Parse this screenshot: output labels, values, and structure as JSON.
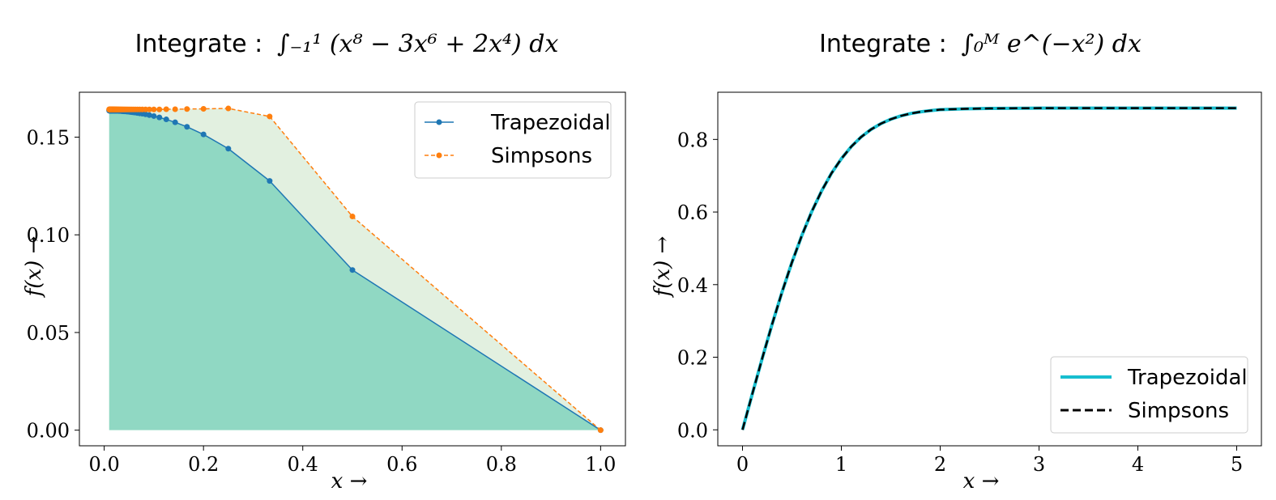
{
  "figure": {
    "charts": [
      {
        "title_prefix": "Integrate :",
        "title_formula": "∫₋₁¹ (x⁸ − 3x⁶ + 2x⁴) dx",
        "xlabel": "x →",
        "ylabel": "f(x) →"
      },
      {
        "title_prefix": "Integrate :",
        "title_formula": "∫₀ᴹ e^(−x²) dx",
        "xlabel": "x →",
        "ylabel": "f(x) →"
      }
    ]
  },
  "colors": {
    "trapezoidal_left": "#1f77b4",
    "simpsons_left": "#ff7f0e",
    "fill_trapezoidal": "#3ebfa5",
    "fill_simpsons": "#d8ebd6",
    "trapezoidal_right": "#17becf",
    "simpsons_right": "#000000"
  },
  "chart_data": [
    {
      "type": "line",
      "title": "Integrate : ∫₋₁¹ (x⁸ − 3x⁶ + 2x⁴) dx",
      "xlabel": "x →",
      "ylabel": "f(x) →",
      "xlim": [
        -0.05,
        1.05
      ],
      "ylim": [
        -0.008,
        0.173
      ],
      "xticks": [
        0.0,
        0.2,
        0.4,
        0.6,
        0.8,
        1.0
      ],
      "xtick_labels": [
        "0.0",
        "0.2",
        "0.4",
        "0.6",
        "0.8",
        "1.0"
      ],
      "yticks": [
        0.0,
        0.05,
        0.1,
        0.15
      ],
      "ytick_labels": [
        "0.00",
        "0.05",
        "0.10",
        "0.15"
      ],
      "grid": false,
      "legend": "top-right",
      "series": [
        {
          "name": "Trapezoidal",
          "style": "solid-marker",
          "x": [
            1.0,
            0.5,
            0.3333,
            0.25,
            0.2,
            0.1667,
            0.1429,
            0.125,
            0.1111,
            0.1,
            0.0909,
            0.0833,
            0.0769,
            0.0714,
            0.0667,
            0.0625,
            0.0588,
            0.0556,
            0.0526,
            0.05,
            0.0476,
            0.0455,
            0.0435,
            0.0417,
            0.04,
            0.0385,
            0.037,
            0.0357,
            0.0345,
            0.0333,
            0.0323,
            0.0313,
            0.0303,
            0.0294,
            0.0286,
            0.0278,
            0.027,
            0.0263,
            0.0256,
            0.025,
            0.0244,
            0.0238,
            0.0233,
            0.0227,
            0.0222,
            0.0217,
            0.0213,
            0.0208,
            0.0204,
            0.02,
            0.0196,
            0.0192,
            0.0189,
            0.0185,
            0.0182,
            0.0179,
            0.0175,
            0.0172,
            0.0169,
            0.0167,
            0.0164,
            0.0161,
            0.0159,
            0.0156,
            0.0154,
            0.0152,
            0.0149,
            0.0147,
            0.0145,
            0.0143,
            0.0141,
            0.0139,
            0.0137,
            0.0135,
            0.0133,
            0.0132,
            0.013,
            0.0128,
            0.0127,
            0.0125,
            0.0123,
            0.0122,
            0.012,
            0.0119,
            0.0118,
            0.0116,
            0.0115,
            0.0114,
            0.0112,
            0.0111,
            0.011,
            0.0109,
            0.0108,
            0.0106,
            0.0105,
            0.0104,
            0.0103,
            0.0102,
            0.0101,
            0.01
          ],
          "y": [
            0.0,
            0.082,
            0.1276,
            0.1441,
            0.1514,
            0.1553,
            0.1576,
            0.1591,
            0.1601,
            0.1608,
            0.1613,
            0.1617,
            0.162,
            0.1622,
            0.1624,
            0.1626,
            0.1627,
            0.1628,
            0.1629,
            0.163,
            0.1631,
            0.1631,
            0.1632,
            0.1632,
            0.1632,
            0.1633,
            0.1633,
            0.1633,
            0.1634,
            0.1634,
            0.1634,
            0.1634,
            0.1634,
            0.1634,
            0.1635,
            0.1635,
            0.1635,
            0.1635,
            0.1635,
            0.1635,
            0.1635,
            0.1635,
            0.1635,
            0.1635,
            0.1635,
            0.1635,
            0.1635,
            0.1635,
            0.1636,
            0.1636,
            0.1636,
            0.1636,
            0.1636,
            0.1636,
            0.1636,
            0.1636,
            0.1636,
            0.1636,
            0.1636,
            0.1636,
            0.1636,
            0.1636,
            0.1636,
            0.1636,
            0.1636,
            0.1636,
            0.1636,
            0.1636,
            0.1636,
            0.1636,
            0.1636,
            0.1636,
            0.1636,
            0.1636,
            0.1636,
            0.1636,
            0.1636,
            0.1636,
            0.1636,
            0.1636,
            0.1636,
            0.1636,
            0.1636,
            0.1636,
            0.1636,
            0.1636,
            0.1636,
            0.1636,
            0.1636,
            0.1636,
            0.1636,
            0.1636,
            0.1636,
            0.1636,
            0.1636,
            0.1636,
            0.1636,
            0.1636,
            0.1636,
            0.1636
          ]
        },
        {
          "name": "Simpsons",
          "style": "dashed-marker",
          "x": [
            1.0,
            0.5,
            0.3333,
            0.25,
            0.2,
            0.1667,
            0.1429,
            0.125,
            0.1111,
            0.1,
            0.0909,
            0.0833,
            0.0769,
            0.0714,
            0.0667,
            0.0625,
            0.0588,
            0.0556,
            0.0526,
            0.05,
            0.0476,
            0.0455,
            0.0435,
            0.0417,
            0.04,
            0.0385,
            0.037,
            0.0357,
            0.0345,
            0.0333,
            0.0323,
            0.0313,
            0.0303,
            0.0294,
            0.0286,
            0.0278,
            0.027,
            0.0263,
            0.0256,
            0.025,
            0.0244,
            0.0238,
            0.0233,
            0.0227,
            0.0222,
            0.0217,
            0.0213,
            0.0208,
            0.0204,
            0.02,
            0.0196,
            0.0192,
            0.0189,
            0.0185,
            0.0182,
            0.0179,
            0.0175,
            0.0172,
            0.0169,
            0.0167,
            0.0164,
            0.0161,
            0.0159,
            0.0156,
            0.0154,
            0.0152,
            0.0149,
            0.0147,
            0.0145,
            0.0143,
            0.0141,
            0.0139,
            0.0137,
            0.0135,
            0.0133,
            0.0132,
            0.013,
            0.0128,
            0.0127,
            0.0125,
            0.0123,
            0.0122,
            0.012,
            0.0119,
            0.0118,
            0.0116,
            0.0115,
            0.0114,
            0.0112,
            0.0111,
            0.011,
            0.0109,
            0.0108,
            0.0106,
            0.0105,
            0.0104,
            0.0103,
            0.0102,
            0.0101,
            0.01
          ],
          "y": [
            0.0,
            0.1094,
            0.1606,
            0.1647,
            0.1645,
            0.1644,
            0.1643,
            0.1643,
            0.1642,
            0.1642,
            0.1642,
            0.1642,
            0.1642,
            0.1642,
            0.1642,
            0.1642,
            0.1642,
            0.1642,
            0.1642,
            0.1642,
            0.1642,
            0.1642,
            0.1642,
            0.1642,
            0.1642,
            0.1642,
            0.1642,
            0.1642,
            0.1642,
            0.1642,
            0.1642,
            0.1642,
            0.1642,
            0.1642,
            0.1642,
            0.1642,
            0.1642,
            0.1642,
            0.1642,
            0.1642,
            0.1642,
            0.1642,
            0.1642,
            0.1642,
            0.1642,
            0.1642,
            0.1642,
            0.1642,
            0.1642,
            0.1642,
            0.1642,
            0.1642,
            0.1642,
            0.1642,
            0.1642,
            0.1642,
            0.1642,
            0.1642,
            0.1642,
            0.1642,
            0.1642,
            0.1642,
            0.1642,
            0.1642,
            0.1642,
            0.1642,
            0.1642,
            0.1642,
            0.1642,
            0.1642,
            0.1642,
            0.1642,
            0.1642,
            0.1642,
            0.1642,
            0.1642,
            0.1642,
            0.1642,
            0.1642,
            0.1642,
            0.1642,
            0.1642,
            0.1642,
            0.1642,
            0.1642,
            0.1642,
            0.1642,
            0.1642,
            0.1642,
            0.1642,
            0.1642,
            0.1642,
            0.1642,
            0.1642,
            0.1642,
            0.1642,
            0.1642,
            0.1642,
            0.1642,
            0.1642
          ]
        }
      ]
    },
    {
      "type": "line",
      "title": "Integrate : ∫₀ᴹ e^(−x²) dx",
      "xlabel": "x →",
      "ylabel": "f(x) →",
      "xlim": [
        -0.25,
        5.25
      ],
      "ylim": [
        -0.044,
        0.93
      ],
      "xticks": [
        0,
        1,
        2,
        3,
        4,
        5
      ],
      "xtick_labels": [
        "0",
        "1",
        "2",
        "3",
        "4",
        "5"
      ],
      "yticks": [
        0.0,
        0.2,
        0.4,
        0.6,
        0.8
      ],
      "ytick_labels": [
        "0.0",
        "0.2",
        "0.4",
        "0.6",
        "0.8"
      ],
      "grid": false,
      "legend": "bottom-right",
      "series": [
        {
          "name": "Trapezoidal",
          "style": "solid-thick",
          "x": [
            0,
            0.1,
            0.2,
            0.3,
            0.4,
            0.5,
            0.6,
            0.7,
            0.8,
            0.9,
            1.0,
            1.1,
            1.2,
            1.3,
            1.4,
            1.5,
            1.6,
            1.7,
            1.8,
            1.9,
            2.0,
            2.25,
            2.5,
            3.0,
            3.5,
            4.0,
            4.5,
            5.0
          ],
          "y": [
            0.0,
            0.0997,
            0.1974,
            0.2912,
            0.3796,
            0.4613,
            0.5352,
            0.6008,
            0.6579,
            0.7067,
            0.7468,
            0.7801,
            0.8067,
            0.8275,
            0.8434,
            0.8556,
            0.8647,
            0.8713,
            0.876,
            0.8793,
            0.8821,
            0.8843,
            0.8854,
            0.8862,
            0.8862,
            0.8862,
            0.8862,
            0.8862
          ]
        },
        {
          "name": "Simpsons",
          "style": "dashed",
          "x": [
            0,
            0.1,
            0.2,
            0.3,
            0.4,
            0.5,
            0.6,
            0.7,
            0.8,
            0.9,
            1.0,
            1.1,
            1.2,
            1.3,
            1.4,
            1.5,
            1.6,
            1.7,
            1.8,
            1.9,
            2.0,
            2.25,
            2.5,
            3.0,
            3.5,
            4.0,
            4.5,
            5.0
          ],
          "y": [
            0.0,
            0.0997,
            0.1974,
            0.2912,
            0.3796,
            0.4613,
            0.5352,
            0.6008,
            0.6579,
            0.7067,
            0.7468,
            0.7801,
            0.8067,
            0.8275,
            0.8434,
            0.8556,
            0.8647,
            0.8713,
            0.876,
            0.8793,
            0.8821,
            0.8843,
            0.8854,
            0.8862,
            0.8862,
            0.8862,
            0.8862,
            0.8862
          ]
        }
      ]
    }
  ]
}
